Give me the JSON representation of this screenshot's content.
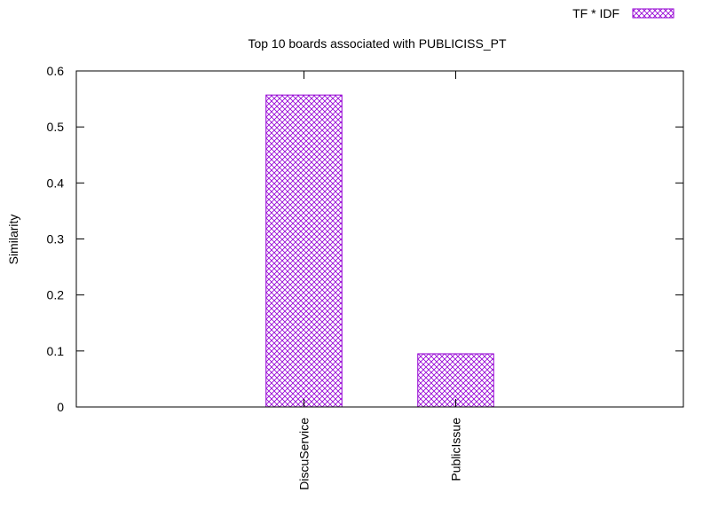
{
  "chart_data": {
    "type": "bar",
    "title": "Top 10 boards associated with PUBLICISS_PT",
    "xlabel": "",
    "ylabel": "Similarity",
    "categories": [
      "DiscuService",
      "PublicIssue"
    ],
    "series": [
      {
        "name": "TF * IDF",
        "values": [
          0.557,
          0.095
        ]
      }
    ],
    "ylim": [
      0,
      0.6
    ],
    "yticks": [
      0,
      0.1,
      0.2,
      0.3,
      0.4,
      0.5,
      0.6
    ],
    "ytick_labels": [
      "0",
      "0.1",
      "0.2",
      "0.3",
      "0.4",
      "0.5",
      "0.6"
    ],
    "grid": false,
    "legend_position": "top-right",
    "bar_color": "#9400d3",
    "fill_pattern": "crosshatch"
  }
}
